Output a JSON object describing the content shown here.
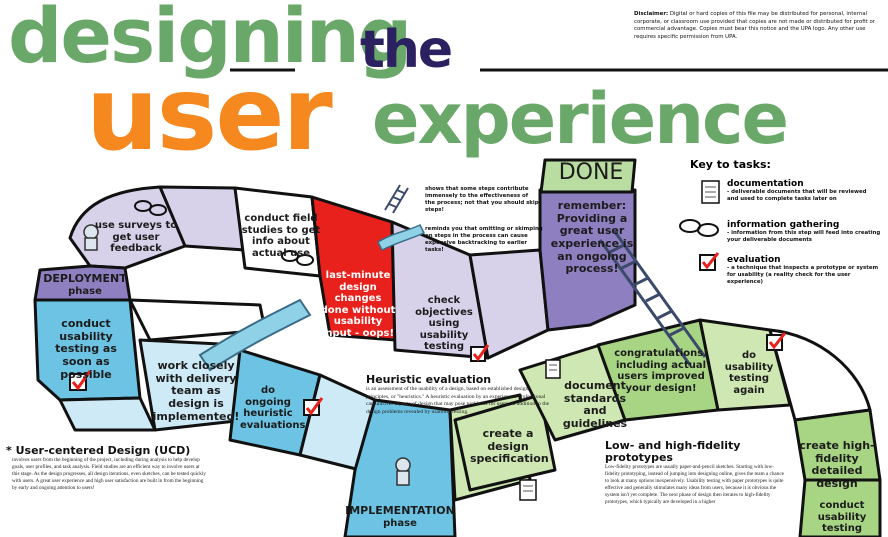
{
  "colors": {
    "green": "#6aa86a",
    "navy": "#2b2060",
    "orange": "#f5891f",
    "red": "#e8211c",
    "purple": "#8e7fc0",
    "lavender": "#d7d1ea",
    "blue": "#6cc3e3",
    "lightblue": "#cdeaf6",
    "lightgreen": "#cfe7b2",
    "midgreen": "#a8d583"
  },
  "title": {
    "line1": "designing",
    "line2": "the",
    "line3": "user",
    "line4": "experience"
  },
  "disclaimer": {
    "label": "Disclaimer:",
    "text": "Digital or hard copies of this file may be distributed for personal, internal corporate, or classroom use provided that copies are not made or distributed for profit or commercial advantage. Copies must bear this notice and the UPA logo. Any other use requires specific permission from UPA."
  },
  "key": {
    "heading": "Key to tasks:",
    "items": [
      {
        "icon": "document-icon",
        "title": "documentation",
        "desc": "- deliverable documents that will be reviewed and used to complete tasks later on"
      },
      {
        "icon": "glasses-icon",
        "title": "information gathering",
        "desc": "- information from this step will feed into creating your deliverable documents"
      },
      {
        "icon": "checkbox-icon",
        "title": "evaluation",
        "desc": "- a technique that inspects a prototype or system for usability (a reality check for the user experience)"
      }
    ]
  },
  "legend": {
    "ladder": "shows that some steps contribute immensely to the effectiveness of the process; not that you should skip steps!",
    "slide": "reminds you that omitting or skimping on steps in the process can cause expensive backtracking to earlier tasks!"
  },
  "board": {
    "done": "DONE",
    "remember": "remember: Providing a great user experience is an ongoing process!",
    "surveys": "use surveys to get user feedback",
    "deployment": {
      "title": "DEPLOYMENT",
      "sub": "phase"
    },
    "field": "conduct field studies to get info about actual use",
    "lastminute": "last-minute design changes done without usability input - oops!",
    "checkobj": "check objectives using usability testing",
    "asap": "conduct usability testing as soon as possible",
    "work": "work closely with delivery team as design is implemented!",
    "heuristic": "do ongoing heuristic evaluations",
    "implementation": {
      "title": "IMPLEMENTATION",
      "sub": "phase"
    },
    "document": "document standards and guidelines",
    "spec": "create a design specification",
    "congrats": "congratulations! including actual users improved your design!",
    "again": "do usability testing again",
    "hifi": "create high-fidelity detailed design",
    "conduct2": "conduct usability testing"
  },
  "heuristic": {
    "title": "Heuristic evaluation",
    "text": "is an assessment of the usability of a design, based on established design principles, or \"heuristics.\" A heuristic evaluation by an experienced professional can uncover aspects of design that may pose problems for users, in addition to the design problems revealed by usability testing."
  },
  "ucd": {
    "star": "*",
    "title": "User-centered Design (UCD)",
    "text": "involves users from the beginning of the project, including during analysis to help develop goals, user profiles, and task analysis. Field studies are an efficient way to involve users at this stage. As the design progresses, all design iterations, even sketches, can be tested quickly with users. A great user experience and high user satisfaction are built in from the beginning by early and ongoing attention to users!"
  },
  "lowhigh": {
    "title": "Low- and high-fidelity prototypes",
    "text": "Low-fidelity prototypes are usually paper-and-pencil sketches. Starting with low-fidelity prototyping, instead of jumping into designing online, gives the team a chance to look at many options inexpensively. Usability testing with paper prototypes is quite effective and generally stimulates many ideas from users, because it is obvious the system isn't yet complete. The next phase of design then iterates to high-fidelity prototypes, which typically are developed in a higher"
  }
}
